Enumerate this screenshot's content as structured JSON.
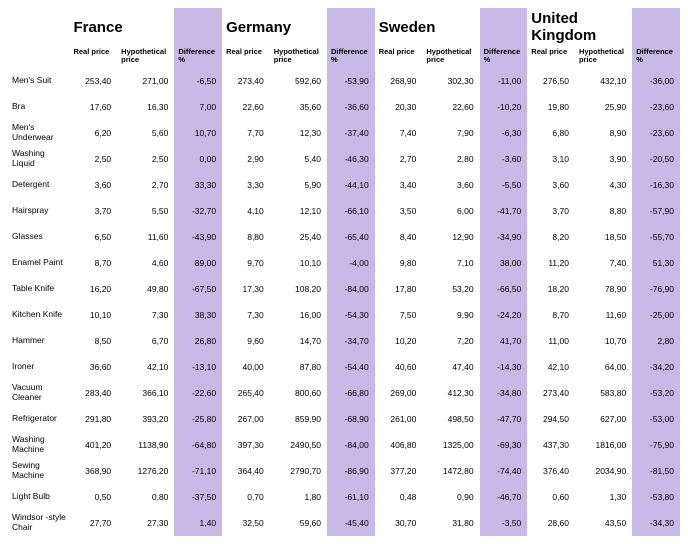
{
  "colors": {
    "diff_bg": "#c6b9e6",
    "bg": "#ffffff",
    "text": "#000000"
  },
  "headers": {
    "real": "Real price",
    "hyp": "Hypothetical price",
    "diff": "Difference %"
  },
  "countries": [
    "France",
    "Germany",
    "Sweden",
    "United Kingdom"
  ],
  "rows": [
    {
      "label": "Men's Suit",
      "v": [
        [
          "253,40",
          "271,00",
          "-6,50"
        ],
        [
          "273,40",
          "592,60",
          "-53,90"
        ],
        [
          "268,90",
          "302,30",
          "-11,00"
        ],
        [
          "276,50",
          "432,10",
          "-36,00"
        ]
      ]
    },
    {
      "label": "Bra",
      "v": [
        [
          "17,60",
          "16,30",
          "7,00"
        ],
        [
          "22,60",
          "35,60",
          "-36,60"
        ],
        [
          "20,30",
          "22,60",
          "-10,20"
        ],
        [
          "19,80",
          "25,90",
          "-23,60"
        ]
      ]
    },
    {
      "label": "Men's Underwear",
      "v": [
        [
          "6,20",
          "5,60",
          "10,70"
        ],
        [
          "7,70",
          "12,30",
          "-37,40"
        ],
        [
          "7,40",
          "7,90",
          "-6,30"
        ],
        [
          "6,80",
          "8,90",
          "-23,60"
        ]
      ]
    },
    {
      "label": "Washing Liquid",
      "v": [
        [
          "2,50",
          "2,50",
          "0,00"
        ],
        [
          "2,90",
          "5,40",
          "-46,30"
        ],
        [
          "2,70",
          "2,80",
          "-3,60"
        ],
        [
          "3,10",
          "3,90",
          "-20,50"
        ]
      ]
    },
    {
      "label": "Detergent",
      "v": [
        [
          "3,60",
          "2,70",
          "33,30"
        ],
        [
          "3,30",
          "5,90",
          "-44,10"
        ],
        [
          "3,40",
          "3,60",
          "-5,50"
        ],
        [
          "3,60",
          "4,30",
          "-16,30"
        ]
      ]
    },
    {
      "label": "Hairspray",
      "v": [
        [
          "3,70",
          "5,50",
          "-32,70"
        ],
        [
          "4,10",
          "12,10",
          "-66,10"
        ],
        [
          "3,50",
          "6,00",
          "-41,70"
        ],
        [
          "3,70",
          "8,80",
          "-57,90"
        ]
      ]
    },
    {
      "label": "Glasses",
      "v": [
        [
          "6,50",
          "11,60",
          "-43,90"
        ],
        [
          "8,80",
          "25,40",
          "-65,40"
        ],
        [
          "8,40",
          "12,90",
          "-34,90"
        ],
        [
          "8,20",
          "18,50",
          "-55,70"
        ]
      ]
    },
    {
      "label": "Enamel Paint",
      "v": [
        [
          "8,70",
          "4,60",
          "89,00"
        ],
        [
          "9,70",
          "10,10",
          "-4,00"
        ],
        [
          "9,80",
          "7,10",
          "38,00"
        ],
        [
          "11,20",
          "7,40",
          "51,30"
        ]
      ]
    },
    {
      "label": "Table Knife",
      "v": [
        [
          "16,20",
          "49,80",
          "-67,50"
        ],
        [
          "17,30",
          "108,20",
          "-84,00"
        ],
        [
          "17,80",
          "53,20",
          "-66,50"
        ],
        [
          "18,20",
          "78,90",
          "-76,90"
        ]
      ]
    },
    {
      "label": "Kitchen Knife",
      "v": [
        [
          "10,10",
          "7,30",
          "38,30"
        ],
        [
          "7,30",
          "16,00",
          "-54,30"
        ],
        [
          "7,50",
          "9,90",
          "-24,20"
        ],
        [
          "8,70",
          "11,60",
          "-25,00"
        ]
      ]
    },
    {
      "label": "Hammer",
      "v": [
        [
          "8,50",
          "6,70",
          "26,80"
        ],
        [
          "9,60",
          "14,70",
          "-34,70"
        ],
        [
          "10,20",
          "7,20",
          "41,70"
        ],
        [
          "11,00",
          "10,70",
          "2,80"
        ]
      ]
    },
    {
      "label": "Ironer",
      "v": [
        [
          "36,60",
          "42,10",
          "-13,10"
        ],
        [
          "40,00",
          "87,80",
          "-54,40"
        ],
        [
          "40,60",
          "47,40",
          "-14,30"
        ],
        [
          "42,10",
          "64,00",
          "-34,20"
        ]
      ]
    },
    {
      "label": "Vacuum Cleaner",
      "v": [
        [
          "283,40",
          "366,10",
          "-22,60"
        ],
        [
          "265,40",
          "800,60",
          "-66,80"
        ],
        [
          "269,00",
          "412,30",
          "-34,80"
        ],
        [
          "273,40",
          "583,80",
          "-53,20"
        ]
      ]
    },
    {
      "label": "Refrigerator",
      "v": [
        [
          "291,80",
          "393,20",
          "-25,80"
        ],
        [
          "267,00",
          "859,90",
          "-68,90"
        ],
        [
          "261,00",
          "498,50",
          "-47,70"
        ],
        [
          "294,50",
          "627,00",
          "-53,00"
        ]
      ]
    },
    {
      "label": "Washing Machine",
      "v": [
        [
          "401,20",
          "1138,90",
          "-64,80"
        ],
        [
          "397,30",
          "2490,50",
          "-84,00"
        ],
        [
          "406,80",
          "1325,00",
          "-69,30"
        ],
        [
          "437,30",
          "1816,00",
          "-75,90"
        ]
      ]
    },
    {
      "label": "Sewing Machine",
      "v": [
        [
          "368,90",
          "1276,20",
          "-71,10"
        ],
        [
          "364,40",
          "2790,70",
          "-86,90"
        ],
        [
          "377,20",
          "1472,80",
          "-74,40"
        ],
        [
          "376,40",
          "2034,90",
          "-81,50"
        ]
      ]
    },
    {
      "label": "Light Bulb",
      "v": [
        [
          "0,50",
          "0,80",
          "-37,50"
        ],
        [
          "0,70",
          "1,80",
          "-61,10"
        ],
        [
          "0,48",
          "0,90",
          "-46,70"
        ],
        [
          "0,60",
          "1,30",
          "-53,80"
        ]
      ]
    },
    {
      "label": "Windsor -style Chair",
      "v": [
        [
          "27,70",
          "27,30",
          "1,40"
        ],
        [
          "32,50",
          "59,60",
          "-45,40"
        ],
        [
          "30,70",
          "31,80",
          "-3,50"
        ],
        [
          "28,60",
          "43,50",
          "-34,30"
        ]
      ]
    }
  ]
}
